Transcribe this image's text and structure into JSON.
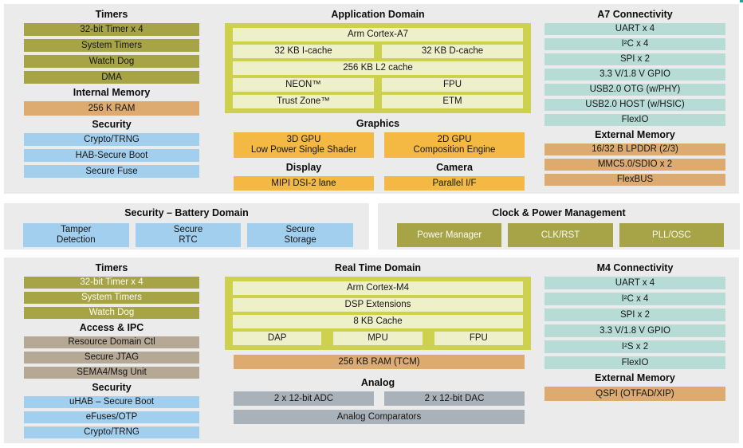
{
  "palette": {
    "olive": "#a7a447",
    "pale": "#eef0ca",
    "ygreen": "#cdd14e",
    "amber": "#f4b942",
    "teal": "#b7dcd6",
    "blue": "#a3cfee",
    "orange": "#ddaa6f",
    "gray": "#a9b2b8",
    "tan": "#b5a895",
    "panel": "#ebebeb",
    "ink": "#161616",
    "white-text": "#fbfbf3"
  },
  "top": {
    "left": {
      "timers_header": "Timers",
      "timers": [
        "32-bit Timer x 4",
        "System Timers",
        "Watch Dog",
        "DMA"
      ],
      "internal_memory_header": "Internal Memory",
      "internal_memory": [
        "256 K RAM"
      ],
      "security_header": "Security",
      "security": [
        "Crypto/TRNG",
        "HAB-Secure Boot",
        "Secure Fuse"
      ]
    },
    "center": {
      "header": "Application Domain",
      "cpu": "Arm Cortex-A7",
      "icache": "32 KB I-cache",
      "dcache": "32 KB D-cache",
      "l2cache": "256 KB L2 cache",
      "neon": "NEON™",
      "fpu": "FPU",
      "trustzone": "Trust Zone™",
      "etm": "ETM",
      "graphics_header": "Graphics",
      "gpu3d": {
        "line1": "3D GPU",
        "line2": "Low Power Single Shader"
      },
      "gpu2d": {
        "line1": "2D GPU",
        "line2": "Composition Engine"
      },
      "display_header": "Display",
      "display": "MIPI DSI-2 lane",
      "camera_header": "Camera",
      "camera": "Parallel I/F"
    },
    "right": {
      "header": "A7 Connectivity",
      "connectivity": [
        "UART x 4",
        "I²C x 4",
        "SPI x 2",
        "3.3 V/1.8 V GPIO",
        "USB2.0 OTG (w/PHY)",
        "USB2.0 HOST (w/HSIC)",
        "FlexIO"
      ],
      "external_memory_header": "External Memory",
      "external_memory": [
        "16/32 B LPDDR (2/3)",
        "MMC5.0/SDIO x 2",
        "FlexBUS"
      ]
    }
  },
  "battery": {
    "header": "Security – Battery Domain",
    "boxes": [
      {
        "line1": "Tamper",
        "line2": "Detection"
      },
      {
        "line1": "Secure",
        "line2": "RTC"
      },
      {
        "line1": "Secure",
        "line2": "Storage"
      }
    ]
  },
  "clock": {
    "header": "Clock & Power Management",
    "boxes": [
      "Power Manager",
      "CLK/RST",
      "PLL/OSC"
    ]
  },
  "bottom": {
    "left": {
      "timers_header": "Timers",
      "timers": [
        "32-bit Timer x 4",
        "System Timers",
        "Watch Dog"
      ],
      "access_header": "Access & IPC",
      "access": [
        "Resource Domain Ctl",
        "Secure JTAG",
        "SEMA4/Msg Unit"
      ],
      "security_header": "Security",
      "security": [
        "uHAB – Secure Boot",
        "eFuses/OTP",
        "Crypto/TRNG"
      ]
    },
    "center": {
      "header": "Real Time Domain",
      "cpu": "Arm Cortex-M4",
      "dsp": "DSP Extensions",
      "cache": "8 KB Cache",
      "dap": "DAP",
      "mpu": "MPU",
      "fpu": "FPU",
      "tcm": "256 KB RAM (TCM)",
      "analog_header": "Analog",
      "adc": "2 x 12-bit ADC",
      "dac": "2 x 12-bit DAC",
      "comparators": "Analog Comparators"
    },
    "right": {
      "header": "M4 Connectivity",
      "connectivity": [
        "UART x 4",
        "I²C x 4",
        "SPI x 2",
        "3.3 V/1.8 V GPIO",
        "I²S x 2",
        "FlexIO"
      ],
      "external_memory_header": "External Memory",
      "external_memory": [
        "QSPI (OTFAD/XIP)"
      ]
    }
  }
}
